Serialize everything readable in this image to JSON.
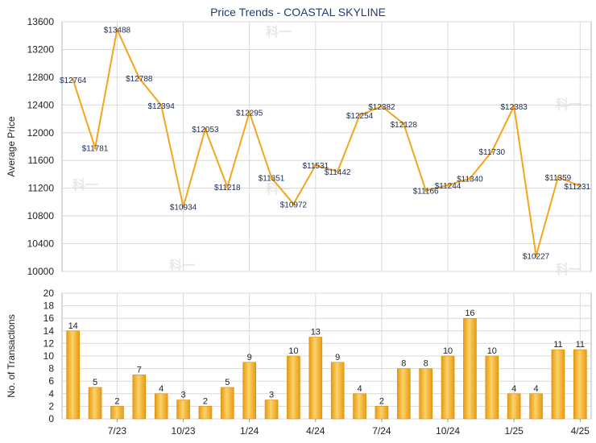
{
  "title": "Price Trends - COASTAL SKYLINE",
  "colors": {
    "line": "#f5a51c",
    "bar_light": "#fbd36a",
    "bar_dark": "#e89a10",
    "grid": "#d9d9d9",
    "title": "#1f3c78"
  },
  "chart_data": [
    {
      "type": "line",
      "title": "Price Trends - COASTAL SKYLINE",
      "ylabel": "Average Price",
      "ylim": [
        10000,
        13600
      ],
      "yticks": [
        10000,
        10400,
        10800,
        11200,
        11600,
        12000,
        12400,
        12800,
        13200,
        13600
      ],
      "grid": true,
      "series": [
        {
          "values": [
            12764,
            11781,
            13488,
            12788,
            12394,
            10934,
            12053,
            11218,
            12295,
            11351,
            10972,
            11531,
            11442,
            12254,
            12382,
            12128,
            11166,
            11244,
            11340,
            11730,
            12383,
            10227,
            11359,
            11231
          ],
          "labels": [
            "$12764",
            "$11781",
            "$13488",
            "$12788",
            "$12394",
            "$10934",
            "$12053",
            "$11218",
            "$12295",
            "$11351",
            "$10972",
            "$11531",
            "$11442",
            "$12254",
            "$12382",
            "$12128",
            "$11166",
            "$11244",
            "$11340",
            "$11730",
            "$12383",
            "$10227",
            "$11359",
            "$11231"
          ]
        }
      ]
    },
    {
      "type": "bar",
      "ylabel": "No. of Transactions",
      "ylim": [
        0,
        20
      ],
      "yticks": [
        0,
        2,
        4,
        6,
        8,
        10,
        12,
        14,
        16,
        18,
        20
      ],
      "grid": true,
      "values": [
        14,
        5,
        2,
        7,
        4,
        3,
        2,
        5,
        9,
        3,
        10,
        13,
        9,
        4,
        2,
        8,
        8,
        10,
        16,
        10,
        4,
        4,
        11,
        11
      ],
      "xticks": [
        {
          "index": 2,
          "label": "7/23"
        },
        {
          "index": 5,
          "label": "10/23"
        },
        {
          "index": 8,
          "label": "1/24"
        },
        {
          "index": 11,
          "label": "4/24"
        },
        {
          "index": 14,
          "label": "7/24"
        },
        {
          "index": 17,
          "label": "10/24"
        },
        {
          "index": 20,
          "label": "1/25"
        },
        {
          "index": 23,
          "label": "4/25"
        }
      ]
    }
  ]
}
